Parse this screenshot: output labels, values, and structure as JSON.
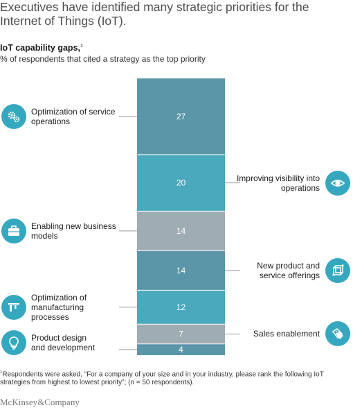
{
  "title": "Executives have identified many strategic priorities for the Internet of Things (IoT).",
  "subtitle": "IoT capability gaps,",
  "subtitle_marker": "1",
  "description": "% of respondents that cited a strategy as the top priority",
  "footnote_marker": "1",
  "footnote": "Respondents were asked, “For a company of your size and in your industry, please rank the following IoT strategies from highest to lowest priority”; (n = 50 respondents).",
  "brand": "McKinsey&Company",
  "chart_data": {
    "type": "bar",
    "stacked": true,
    "categories": [
      "Optimization of service operations",
      "Improving visibility into operations",
      "Enabling new business models",
      "New product and service offerings",
      "Optimization of manufacturing processes",
      "Sales enablement",
      "Product design and development"
    ],
    "values": [
      27,
      20,
      14,
      14,
      12,
      7,
      4
    ],
    "labels": [
      "27",
      "20",
      "14",
      "14",
      "12",
      "7",
      "4"
    ],
    "colors": [
      "#5b95a8",
      "#4aa9bc",
      "#9eacb4",
      "#5b95a8",
      "#4aa9bc",
      "#9eacb4",
      "#5b95a8"
    ],
    "annotations": [
      {
        "lines": [
          "Optimization of service",
          "operations"
        ],
        "side": "left",
        "icon": "gears-icon"
      },
      {
        "lines": [
          "Improving visibility into",
          "operations"
        ],
        "side": "right",
        "icon": "eye-icon"
      },
      {
        "lines": [
          "Enabling new business",
          "models"
        ],
        "side": "left",
        "icon": "briefcase-icon"
      },
      {
        "lines": [
          "New product and",
          "service offerings"
        ],
        "side": "right",
        "icon": "cube-network-icon"
      },
      {
        "lines": [
          "Optimization of",
          "manufacturing",
          "processes"
        ],
        "side": "left",
        "icon": "caliper-icon"
      },
      {
        "lines": [
          "Sales enablement"
        ],
        "side": "right",
        "icon": "price-tags-icon"
      },
      {
        "lines": [
          "Product design",
          "and development"
        ],
        "side": "left",
        "icon": "lightbulb-icon"
      }
    ]
  }
}
